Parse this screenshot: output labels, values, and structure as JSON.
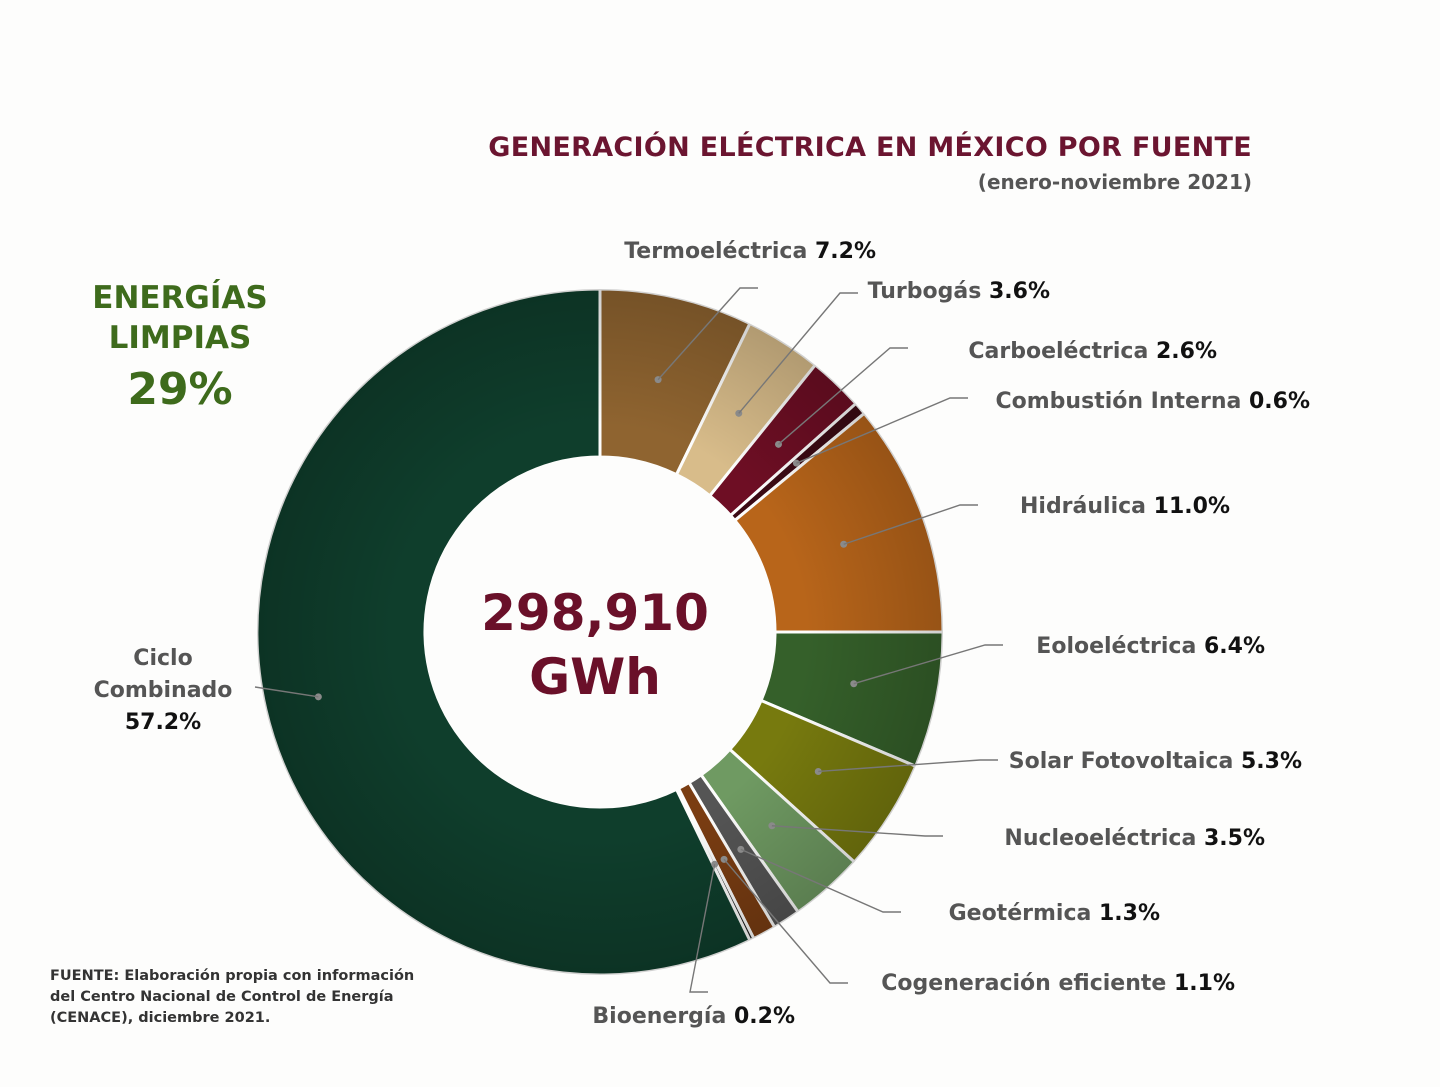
{
  "title": "GENERACIÓN ELÉCTRICA EN MÉXICO POR FUENTE",
  "subtitle": "(enero-noviembre 2021)",
  "clean_energy": {
    "line1": "ENERGÍAS",
    "line2": "LIMPIAS",
    "value": "29%"
  },
  "center": {
    "value": "298,910",
    "unit": "GWh"
  },
  "source": {
    "line1": "FUENTE:  Elaboración propia con información",
    "line2": "del Centro Nacional de Control de Energía",
    "line3": "(CENACE), diciembre 2021."
  },
  "chart_data": {
    "type": "pie",
    "variant": "donut",
    "total": "298,910 GWh",
    "unit": "%",
    "slices": [
      {
        "name": "Termoeléctrica",
        "value": 7.2,
        "label": "7.2%",
        "color": "#8f6430"
      },
      {
        "name": "Turbogás",
        "value": 3.6,
        "label": "3.6%",
        "color": "#d8bc8a"
      },
      {
        "name": "Carboeléctrica",
        "value": 2.6,
        "label": "2.6%",
        "color": "#6e0e24"
      },
      {
        "name": "Combustión Interna",
        "value": 0.6,
        "label": "0.6%",
        "color": "#3c0a14"
      },
      {
        "name": "Hidráulica",
        "value": 11.0,
        "label": "11.0%",
        "color": "#b8651a"
      },
      {
        "name": "Eoloeléctrica",
        "value": 6.4,
        "label": "6.4%",
        "color": "#35602a"
      },
      {
        "name": "Solar Fotovoltaica",
        "value": 5.3,
        "label": "5.3%",
        "color": "#777a0e"
      },
      {
        "name": "Nucleoeléctrica",
        "value": 3.5,
        "label": "3.5%",
        "color": "#6f9a62"
      },
      {
        "name": "Geotérmica",
        "value": 1.3,
        "label": "1.3%",
        "color": "#555555"
      },
      {
        "name": "Cogeneración eficiente",
        "value": 1.1,
        "label": "1.1%",
        "color": "#7a3d12"
      },
      {
        "name": "Bioenergía",
        "value": 0.2,
        "label": "0.2%",
        "color": "#1d1d1d"
      },
      {
        "name": "Ciclo Combinado",
        "value": 57.2,
        "label": "57.2%",
        "color": "#0f3e2c"
      }
    ]
  }
}
